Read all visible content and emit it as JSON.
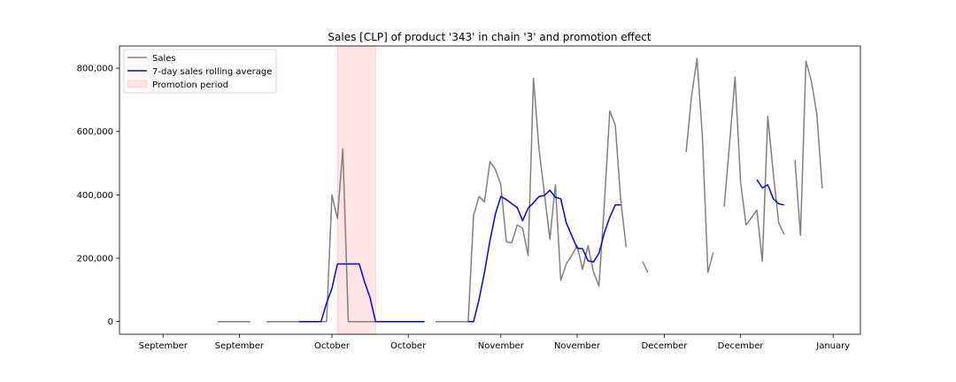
{
  "chart_data": {
    "type": "line",
    "title": "Sales [CLP] of product '343' in chain '3' and promotion effect",
    "xlabel": "",
    "ylabel": "",
    "ylim": [
      -40000,
      870000
    ],
    "xlim": [
      0,
      136
    ],
    "grid": false,
    "legend_position": "top-left",
    "x_ticks": [
      {
        "x": 8,
        "label": "September"
      },
      {
        "x": 22,
        "label": "September"
      },
      {
        "x": 39,
        "label": "October"
      },
      {
        "x": 53,
        "label": "October"
      },
      {
        "x": 70,
        "label": "November"
      },
      {
        "x": 84,
        "label": "November"
      },
      {
        "x": 100,
        "label": "December"
      },
      {
        "x": 114,
        "label": "December"
      },
      {
        "x": 131,
        "label": "January"
      }
    ],
    "y_ticks": [
      {
        "y": 0,
        "label": "0"
      },
      {
        "y": 200000,
        "label": "200,000"
      },
      {
        "y": 400000,
        "label": "400,000"
      },
      {
        "y": 600000,
        "label": "600,000"
      },
      {
        "y": 800000,
        "label": "800,000"
      }
    ],
    "promotion": {
      "start": 40,
      "end": 47,
      "label": "Promotion period",
      "color": "#ffe4e6"
    },
    "series": [
      {
        "name": "Sales",
        "color": "#808080",
        "segments": [
          [
            [
              18,
              0
            ],
            [
              24,
              0
            ]
          ],
          [
            [
              27,
              0
            ],
            [
              38,
              0
            ]
          ],
          [
            [
              38,
              0
            ],
            [
              39,
              400000
            ],
            [
              40,
              325000
            ],
            [
              41,
              545000
            ],
            [
              42,
              0
            ],
            [
              47,
              0
            ]
          ],
          [
            [
              47,
              0
            ],
            [
              56,
              0
            ]
          ],
          [
            [
              58,
              0
            ],
            [
              64,
              0
            ],
            [
              65,
              335000
            ],
            [
              66,
              395000
            ],
            [
              67,
              378000
            ],
            [
              68,
              505000
            ],
            [
              69,
              480000
            ],
            [
              70,
              432000
            ],
            [
              71,
              252000
            ],
            [
              72,
              248000
            ],
            [
              73,
              305000
            ],
            [
              74,
              295000
            ],
            [
              75,
              208000
            ],
            [
              76,
              768000
            ],
            [
              77,
              545000
            ],
            [
              78,
              405000
            ],
            [
              79,
              260000
            ],
            [
              80,
              432000
            ],
            [
              81,
              130000
            ],
            [
              82,
              182000
            ],
            [
              83,
              208000
            ],
            [
              84,
              240000
            ],
            [
              85,
              165000
            ],
            [
              86,
              240000
            ],
            [
              87,
              158000
            ],
            [
              88,
              112000
            ],
            [
              89,
              368000
            ],
            [
              90,
              665000
            ],
            [
              91,
              620000
            ],
            [
              92,
              385000
            ],
            [
              93,
              235000
            ]
          ],
          [
            [
              96,
              190000
            ],
            [
              97,
              155000
            ]
          ],
          [
            [
              104,
              535000
            ],
            [
              105,
              710000
            ],
            [
              106,
              830000
            ],
            [
              107,
              585000
            ],
            [
              108,
              155000
            ],
            [
              109,
              218000
            ]
          ],
          [
            [
              111,
              362000
            ],
            [
              112,
              565000
            ],
            [
              113,
              772000
            ],
            [
              114,
              442000
            ],
            [
              115,
              305000
            ],
            [
              116,
              328000
            ],
            [
              117,
              352000
            ],
            [
              118,
              190000
            ],
            [
              119,
              648000
            ],
            [
              120,
              470000
            ],
            [
              121,
              312000
            ],
            [
              122,
              275000
            ]
          ],
          [
            [
              124,
              510000
            ],
            [
              125,
              272000
            ],
            [
              126,
              822000
            ],
            [
              127,
              760000
            ],
            [
              128,
              655000
            ],
            [
              129,
              420000
            ]
          ]
        ]
      },
      {
        "name": "7-day sales rolling average",
        "color": "#0000ff",
        "segments": [
          [
            [
              33,
              0
            ],
            [
              37,
              0
            ],
            [
              38,
              58000
            ],
            [
              39,
              105000
            ],
            [
              40,
              182000
            ],
            [
              44,
              182000
            ],
            [
              45,
              125000
            ],
            [
              46,
              75000
            ],
            [
              47,
              0
            ],
            [
              56,
              0
            ]
          ],
          [
            [
              64,
              0
            ],
            [
              65,
              0
            ],
            [
              66,
              70000
            ],
            [
              67,
              155000
            ],
            [
              68,
              255000
            ],
            [
              69,
              340000
            ],
            [
              70,
              395000
            ],
            [
              71,
              385000
            ],
            [
              72,
              372000
            ],
            [
              73,
              360000
            ],
            [
              74,
              318000
            ],
            [
              75,
              358000
            ],
            [
              76,
              375000
            ],
            [
              77,
              395000
            ],
            [
              78,
              398000
            ],
            [
              79,
              415000
            ],
            [
              80,
              392000
            ],
            [
              81,
              388000
            ],
            [
              82,
              312000
            ],
            [
              83,
              272000
            ],
            [
              84,
              232000
            ],
            [
              85,
              230000
            ],
            [
              86,
              192000
            ],
            [
              87,
              188000
            ],
            [
              88,
              215000
            ],
            [
              89,
              280000
            ],
            [
              90,
              330000
            ],
            [
              91,
              368000
            ],
            [
              92,
              368000
            ]
          ],
          [
            [
              117,
              448000
            ],
            [
              118,
              422000
            ],
            [
              119,
              432000
            ],
            [
              120,
              388000
            ],
            [
              121,
              372000
            ],
            [
              122,
              368000
            ]
          ]
        ]
      }
    ]
  }
}
